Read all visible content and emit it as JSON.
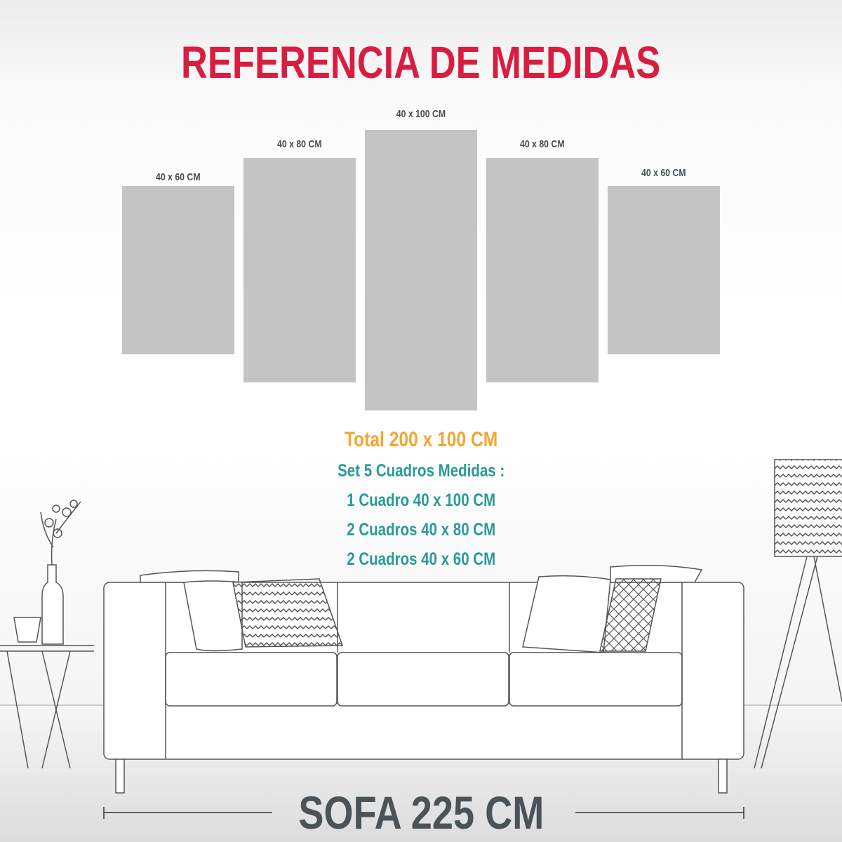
{
  "title": "REFERENCIA DE MEDIDAS",
  "panels": [
    {
      "label": "40 x 60 CM",
      "width_cm": 40,
      "height_cm": 60
    },
    {
      "label": "40 x 80 CM",
      "width_cm": 40,
      "height_cm": 80
    },
    {
      "label": "40 x 100 CM",
      "width_cm": 40,
      "height_cm": 100
    },
    {
      "label": "40 x 80 CM",
      "width_cm": 40,
      "height_cm": 80
    },
    {
      "label": "40 x 60 CM",
      "width_cm": 40,
      "height_cm": 60
    }
  ],
  "info": {
    "total": "Total 200 x 100 CM",
    "set_heading": "Set 5 Cuadros Medidas :",
    "lines": [
      "1 Cuadro 40 x 100 CM",
      "2 Cuadros 40 x 80 CM",
      "2 Cuadros 40 x 60 CM"
    ]
  },
  "sofa_label": "SOFA 225 CM",
  "colors": {
    "title": "#d81e40",
    "total": "#f4a534",
    "info": "#2a9a94",
    "panel": "#c4c4c4",
    "sofa_label": "#4a5358"
  }
}
